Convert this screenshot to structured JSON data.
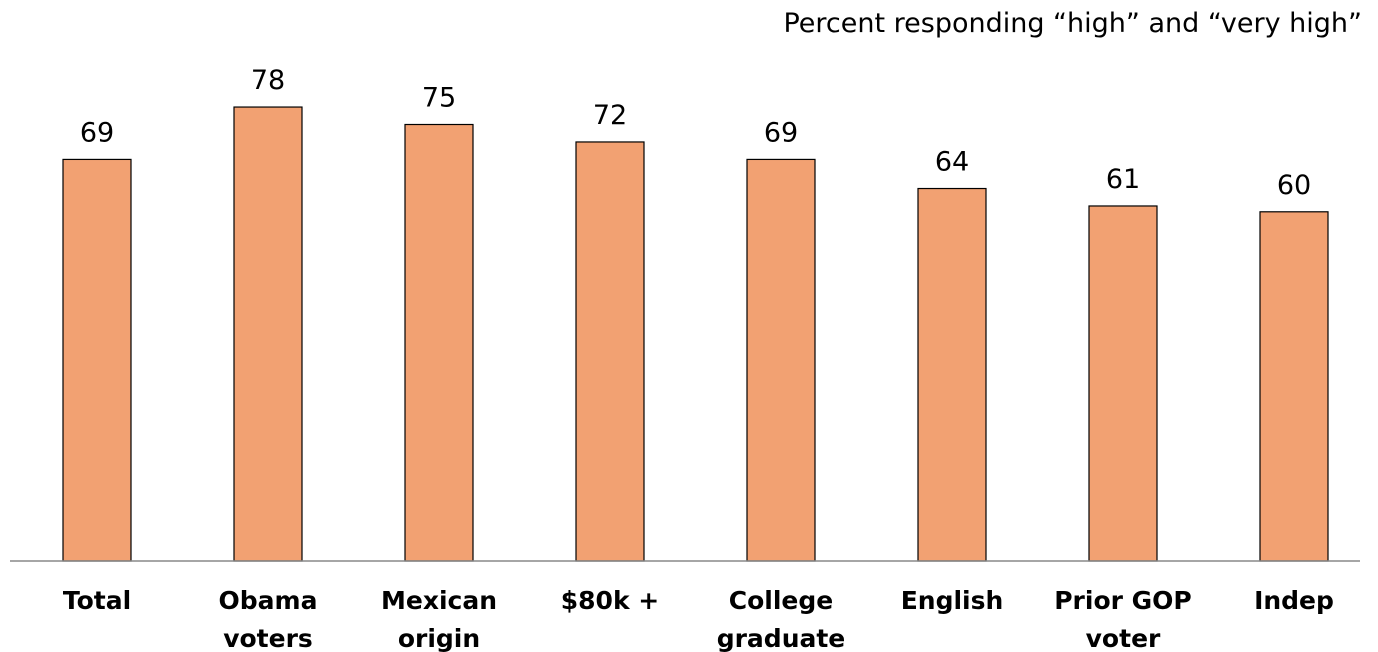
{
  "chart_data": {
    "type": "bar",
    "title": "Percent responding “high” and “very high”",
    "categories": [
      [
        "Total"
      ],
      [
        "Obama",
        "voters"
      ],
      [
        "Mexican",
        "origin"
      ],
      [
        "$80k +"
      ],
      [
        "College",
        "graduate"
      ],
      [
        "English"
      ],
      [
        "Prior GOP",
        "voter"
      ],
      [
        "Indep"
      ]
    ],
    "values": [
      69,
      78,
      75,
      72,
      69,
      64,
      61,
      60
    ],
    "ylim": [
      0,
      100
    ],
    "grid": false,
    "legend": "none",
    "bar_color": "#f2a172"
  }
}
